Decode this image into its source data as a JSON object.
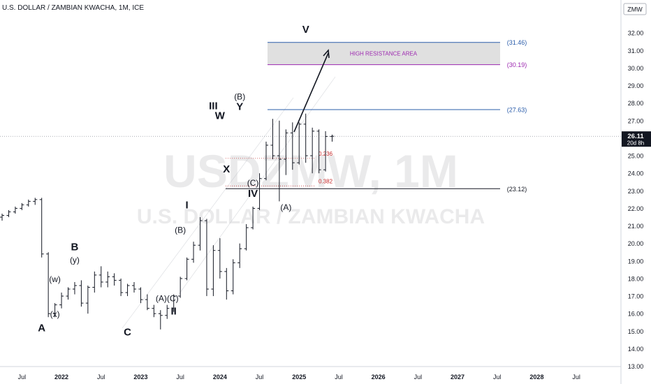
{
  "header": {
    "symbol_title": "U.S. DOLLAR / ZAMBIAN KWACHA, 1M, ICE",
    "currency_badge": "ZMW"
  },
  "watermark": {
    "line1": "USDZMW, 1M",
    "line2": "U.S. DOLLAR / ZAMBIAN KWACHA"
  },
  "price_tag": {
    "value": "26.11",
    "countdown": "20d 8h",
    "price": 26.11
  },
  "colors": {
    "bar": "#131722",
    "blue_level": "#2a5caa",
    "purple_level": "#9c27b0",
    "fib": "#c62828",
    "resistance_fill": "#e0e0e0",
    "axis_text": "#131722",
    "price_tag_bg": "#131722"
  },
  "chart_data": {
    "type": "ohlc",
    "title": "U.S. DOLLAR / ZAMBIAN KWACHA, 1M, ICE",
    "timeframe": "1M",
    "start_month": "2021-04",
    "ylim": [
      12.5,
      33.5
    ],
    "y_ticks": [
      "13.00",
      "14.00",
      "15.00",
      "16.00",
      "17.00",
      "18.00",
      "19.00",
      "20.00",
      "21.00",
      "22.00",
      "23.00",
      "24.00",
      "25.00",
      "26.00",
      "27.00",
      "28.00",
      "29.00",
      "30.00",
      "31.00",
      "32.00"
    ],
    "x_ticks": [
      {
        "label": "Jul",
        "date": "2021-07"
      },
      {
        "label": "2022",
        "date": "2022-01"
      },
      {
        "label": "Jul",
        "date": "2022-07"
      },
      {
        "label": "2023",
        "date": "2023-01"
      },
      {
        "label": "Jul",
        "date": "2023-07"
      },
      {
        "label": "2024",
        "date": "2024-01"
      },
      {
        "label": "Jul",
        "date": "2024-07"
      },
      {
        "label": "2025",
        "date": "2025-01"
      },
      {
        "label": "Jul",
        "date": "2025-07"
      },
      {
        "label": "2026",
        "date": "2026-01"
      },
      {
        "label": "Jul",
        "date": "2026-07"
      },
      {
        "label": "2027",
        "date": "2027-01"
      },
      {
        "label": "Jul",
        "date": "2027-07"
      },
      {
        "label": "2028",
        "date": "2028-01"
      },
      {
        "label": "Jul",
        "date": "2028-07"
      }
    ],
    "ohlc": [
      [
        21.5,
        21.7,
        21.3,
        21.6
      ],
      [
        21.6,
        21.9,
        21.5,
        21.8
      ],
      [
        21.8,
        22.1,
        21.7,
        22.0
      ],
      [
        22.0,
        22.3,
        21.9,
        22.2
      ],
      [
        22.2,
        22.5,
        22.1,
        22.4
      ],
      [
        22.4,
        22.6,
        22.2,
        22.5
      ],
      [
        22.5,
        22.6,
        19.2,
        19.4
      ],
      [
        19.4,
        19.5,
        15.8,
        16.0
      ],
      [
        16.0,
        16.6,
        15.8,
        16.5
      ],
      [
        16.5,
        17.2,
        16.3,
        17.0
      ],
      [
        17.0,
        17.5,
        16.8,
        17.4
      ],
      [
        17.4,
        17.8,
        17.1,
        17.6
      ],
      [
        17.6,
        17.9,
        16.4,
        16.6
      ],
      [
        16.6,
        17.6,
        16.0,
        17.5
      ],
      [
        17.5,
        18.4,
        17.2,
        18.2
      ],
      [
        18.2,
        18.7,
        17.5,
        17.8
      ],
      [
        17.8,
        18.4,
        17.5,
        18.1
      ],
      [
        18.1,
        18.3,
        17.6,
        17.9
      ],
      [
        17.9,
        18.0,
        17.0,
        17.2
      ],
      [
        17.2,
        17.7,
        17.0,
        17.6
      ],
      [
        17.6,
        17.8,
        17.2,
        17.4
      ],
      [
        17.4,
        17.5,
        16.6,
        16.8
      ],
      [
        16.8,
        17.1,
        16.2,
        16.3
      ],
      [
        16.3,
        16.5,
        15.8,
        16.0
      ],
      [
        16.0,
        16.2,
        15.1,
        15.9
      ],
      [
        15.9,
        16.5,
        15.7,
        16.3
      ],
      [
        16.3,
        17.1,
        16.1,
        17.0
      ],
      [
        17.0,
        18.1,
        16.9,
        18.0
      ],
      [
        18.0,
        19.2,
        17.9,
        19.1
      ],
      [
        19.1,
        20.1,
        18.9,
        19.9
      ],
      [
        19.9,
        21.5,
        19.6,
        21.3
      ],
      [
        21.3,
        21.4,
        17.0,
        17.4
      ],
      [
        17.4,
        19.9,
        17.0,
        19.6
      ],
      [
        19.6,
        20.3,
        18.0,
        18.4
      ],
      [
        18.4,
        18.6,
        16.8,
        17.3
      ],
      [
        17.3,
        19.1,
        17.1,
        18.9
      ],
      [
        18.9,
        20.0,
        18.6,
        19.7
      ],
      [
        19.7,
        21.1,
        19.6,
        20.9
      ],
      [
        20.9,
        22.1,
        20.8,
        22.0
      ],
      [
        22.0,
        24.0,
        21.9,
        23.7
      ],
      [
        23.7,
        25.8,
        23.6,
        25.6
      ],
      [
        25.6,
        27.1,
        24.8,
        25.0
      ],
      [
        25.0,
        27.0,
        22.4,
        24.8
      ],
      [
        24.8,
        26.5,
        23.9,
        26.3
      ],
      [
        26.3,
        26.9,
        24.2,
        24.6
      ],
      [
        24.6,
        26.9,
        24.5,
        26.8
      ],
      [
        26.8,
        27.4,
        24.6,
        25.0
      ],
      [
        25.0,
        26.6,
        24.0,
        26.4
      ],
      [
        26.4,
        26.5,
        24.0,
        24.2
      ],
      [
        24.2,
        26.4,
        24.1,
        26.1
      ],
      [
        26.1,
        26.2,
        25.8,
        26.11
      ]
    ],
    "levels": [
      {
        "label": "(31.46)",
        "value": 31.46,
        "color": "blue"
      },
      {
        "label": "(30.19)",
        "value": 30.19,
        "color": "purple"
      },
      {
        "label": "(27.63)",
        "value": 27.63,
        "color": "blue"
      },
      {
        "label": "(23.12)",
        "value": 23.12,
        "color": "black"
      }
    ],
    "resistance_zone": {
      "label": "HIGH RESISTANCE AREA",
      "top": 31.46,
      "bottom": 30.19
    },
    "fib_levels": [
      {
        "label": "0.236",
        "value": 24.85
      },
      {
        "label": "0.382",
        "value": 23.28
      }
    ],
    "wave_labels": [
      {
        "text": "A",
        "month": "2021-10",
        "price": 15.0,
        "bold": true
      },
      {
        "text": "(x)",
        "month": "2021-12",
        "price": 15.8,
        "bold": false
      },
      {
        "text": "(w)",
        "month": "2021-12",
        "price": 17.8,
        "bold": false
      },
      {
        "text": "(y)",
        "month": "2022-03",
        "price": 18.9,
        "bold": false
      },
      {
        "text": "B",
        "month": "2022-03",
        "price": 19.6,
        "bold": true
      },
      {
        "text": "C",
        "month": "2022-11",
        "price": 14.75,
        "bold": true
      },
      {
        "text": "I",
        "month": "2023-08",
        "price": 22.0,
        "bold": true
      },
      {
        "text": "(B)",
        "month": "2023-07",
        "price": 20.6,
        "bold": false
      },
      {
        "text": "(A)(C)",
        "month": "2023-05",
        "price": 16.7,
        "bold": false
      },
      {
        "text": "II",
        "month": "2023-06",
        "price": 15.95,
        "bold": true
      },
      {
        "text": "III",
        "month": "2023-12",
        "price": 27.65,
        "bold": true
      },
      {
        "text": "W",
        "month": "2024-01",
        "price": 27.1,
        "bold": true
      },
      {
        "text": "X",
        "month": "2024-02",
        "price": 24.05,
        "bold": true
      },
      {
        "text": "(A)",
        "month": "2024-11",
        "price": 21.9,
        "bold": false
      },
      {
        "text": "(B)",
        "month": "2024-04",
        "price": 28.2,
        "bold": false
      },
      {
        "text": "Y",
        "month": "2024-04",
        "price": 27.6,
        "bold": true
      },
      {
        "text": "(C)",
        "month": "2024-06",
        "price": 23.3,
        "bold": false
      },
      {
        "text": "IV",
        "month": "2024-06",
        "price": 22.65,
        "bold": true
      },
      {
        "text": "V",
        "month": "2025-02",
        "price": 32.0,
        "bold": true
      }
    ]
  }
}
